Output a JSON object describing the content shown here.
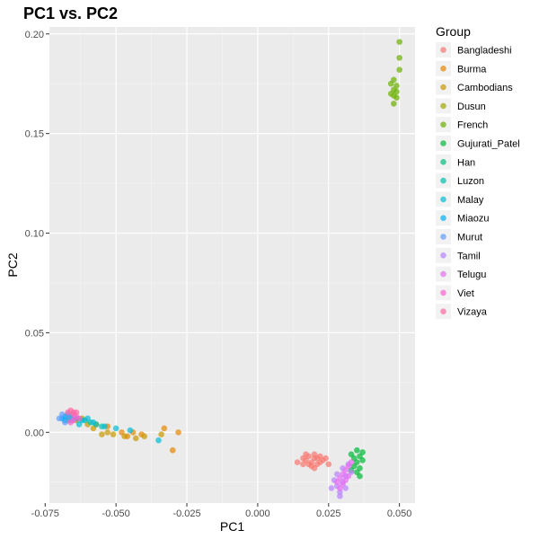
{
  "chart_data": {
    "type": "scatter",
    "title": "PC1 vs. PC2",
    "xlabel": "PC1",
    "ylabel": "PC2",
    "xlim": [
      -0.0735,
      0.0555
    ],
    "ylim": [
      -0.0355,
      0.2035
    ],
    "xticks": [
      -0.075,
      -0.05,
      -0.025,
      0.0,
      0.025,
      0.05
    ],
    "xtick_labels": [
      "-0.075",
      "-0.050",
      "-0.025",
      "0.000",
      "0.025",
      "0.050"
    ],
    "yticks": [
      0.0,
      0.05,
      0.1,
      0.15,
      0.2
    ],
    "ytick_labels": [
      "0.00",
      "0.05",
      "0.10",
      "0.15",
      "0.20"
    ],
    "grid": true,
    "legend_title": "Group",
    "legend_position": "right",
    "series": [
      {
        "name": "Bangladeshi",
        "color": "#F8766D",
        "points": [
          [
            0.016,
            -0.013
          ],
          [
            0.017,
            -0.014
          ],
          [
            0.018,
            -0.012
          ],
          [
            0.019,
            -0.015
          ],
          [
            0.02,
            -0.013
          ],
          [
            0.021,
            -0.016
          ],
          [
            0.022,
            -0.012
          ],
          [
            0.023,
            -0.014
          ],
          [
            0.018,
            -0.016
          ],
          [
            0.02,
            -0.011
          ],
          [
            0.021,
            -0.013
          ],
          [
            0.019,
            -0.017
          ],
          [
            0.017,
            -0.011
          ],
          [
            0.022,
            -0.015
          ],
          [
            0.024,
            -0.013
          ],
          [
            0.014,
            -0.015
          ],
          [
            0.02,
            -0.018
          ],
          [
            0.025,
            -0.016
          ],
          [
            0.016,
            -0.016
          ]
        ]
      },
      {
        "name": "Burma",
        "color": "#E58700",
        "points": [
          [
            -0.03,
            -0.009
          ],
          [
            -0.028,
            0.0
          ],
          [
            -0.033,
            0.002
          ],
          [
            -0.041,
            -0.001
          ],
          [
            -0.044,
            0.0
          ],
          [
            -0.046,
            -0.002
          ],
          [
            -0.048,
            0.0
          ],
          [
            -0.053,
            0.003
          ],
          [
            -0.057,
            0.004
          ]
        ]
      },
      {
        "name": "Cambodians",
        "color": "#C99800",
        "points": [
          [
            -0.034,
            -0.001
          ],
          [
            -0.04,
            -0.002
          ],
          [
            -0.043,
            -0.003
          ],
          [
            -0.047,
            -0.002
          ],
          [
            -0.051,
            -0.001
          ],
          [
            -0.053,
            0.0
          ],
          [
            -0.055,
            -0.001
          ],
          [
            -0.058,
            0.002
          ],
          [
            -0.06,
            0.004
          ]
        ]
      },
      {
        "name": "Dusun",
        "color": "#A3A500",
        "points": [
          [
            -0.062,
            0.007
          ],
          [
            -0.064,
            0.006
          ],
          [
            -0.066,
            0.008
          ],
          [
            -0.067,
            0.006
          ]
        ]
      },
      {
        "name": "French",
        "color": "#6BB100",
        "points": [
          [
            0.048,
            0.165
          ],
          [
            0.049,
            0.168
          ],
          [
            0.047,
            0.17
          ],
          [
            0.048,
            0.172
          ],
          [
            0.049,
            0.174
          ],
          [
            0.047,
            0.175
          ],
          [
            0.048,
            0.177
          ],
          [
            0.05,
            0.182
          ],
          [
            0.05,
            0.188
          ],
          [
            0.05,
            0.196
          ],
          [
            0.048,
            0.169
          ],
          [
            0.049,
            0.171
          ]
        ]
      },
      {
        "name": "Gujurati_Patel",
        "color": "#00BA38",
        "points": [
          [
            0.033,
            -0.011
          ],
          [
            0.034,
            -0.013
          ],
          [
            0.035,
            -0.015
          ],
          [
            0.036,
            -0.012
          ],
          [
            0.037,
            -0.01
          ],
          [
            0.034,
            -0.017
          ],
          [
            0.035,
            -0.02
          ],
          [
            0.036,
            -0.022
          ],
          [
            0.033,
            -0.019
          ],
          [
            0.037,
            -0.014
          ],
          [
            0.035,
            -0.009
          ],
          [
            0.036,
            -0.018
          ]
        ]
      },
      {
        "name": "Han",
        "color": "#00BF7D",
        "points": [
          [
            -0.066,
            0.007
          ],
          [
            -0.067,
            0.008
          ],
          [
            -0.064,
            0.007
          ]
        ]
      },
      {
        "name": "Luzon",
        "color": "#00C0AF",
        "points": [
          [
            -0.061,
            0.006
          ],
          [
            -0.059,
            0.005
          ],
          [
            -0.057,
            0.004
          ],
          [
            -0.055,
            0.003
          ]
        ]
      },
      {
        "name": "Malay",
        "color": "#00BCD8",
        "points": [
          [
            -0.035,
            -0.004
          ],
          [
            -0.045,
            0.001
          ],
          [
            -0.05,
            0.002
          ],
          [
            -0.054,
            0.003
          ],
          [
            -0.058,
            0.005
          ],
          [
            -0.062,
            0.006
          ],
          [
            -0.063,
            0.004
          ],
          [
            -0.06,
            0.007
          ]
        ]
      },
      {
        "name": "Miaozu",
        "color": "#00B0F6",
        "points": [
          [
            -0.068,
            0.008
          ],
          [
            -0.069,
            0.007
          ],
          [
            -0.067,
            0.009
          ],
          [
            -0.068,
            0.006
          ]
        ]
      },
      {
        "name": "Murut",
        "color": "#619CFF",
        "points": [
          [
            -0.07,
            0.007
          ],
          [
            -0.069,
            0.009
          ],
          [
            -0.068,
            0.005
          ],
          [
            -0.066,
            0.006
          ],
          [
            -0.067,
            0.008
          ],
          [
            -0.065,
            0.007
          ]
        ]
      },
      {
        "name": "Tamil",
        "color": "#B983FF",
        "points": [
          [
            0.027,
            -0.024
          ],
          [
            0.028,
            -0.027
          ],
          [
            0.029,
            -0.03
          ],
          [
            0.03,
            -0.025
          ],
          [
            0.031,
            -0.022
          ],
          [
            0.028,
            -0.021
          ],
          [
            0.03,
            -0.018
          ],
          [
            0.032,
            -0.016
          ],
          [
            0.026,
            -0.028
          ],
          [
            0.029,
            -0.032
          ],
          [
            0.031,
            -0.028
          ],
          [
            0.033,
            -0.02
          ]
        ]
      },
      {
        "name": "Telugu",
        "color": "#E76BF3",
        "points": [
          [
            0.029,
            -0.023
          ],
          [
            0.03,
            -0.021
          ],
          [
            0.031,
            -0.019
          ],
          [
            0.032,
            -0.017
          ],
          [
            0.03,
            -0.026
          ],
          [
            0.031,
            -0.024
          ],
          [
            0.033,
            -0.015
          ],
          [
            0.029,
            -0.028
          ],
          [
            0.032,
            -0.022
          ],
          [
            0.028,
            -0.025
          ]
        ]
      },
      {
        "name": "Viet",
        "color": "#FD61D1",
        "points": [
          [
            -0.065,
            0.006
          ],
          [
            -0.066,
            0.005
          ],
          [
            -0.064,
            0.008
          ],
          [
            -0.063,
            0.007
          ],
          [
            -0.065,
            0.009
          ]
        ]
      },
      {
        "name": "Vizaya",
        "color": "#FF67A4",
        "points": [
          [
            -0.066,
            0.011
          ],
          [
            -0.065,
            0.01
          ],
          [
            -0.064,
            0.01
          ],
          [
            -0.067,
            0.01
          ]
        ]
      }
    ]
  }
}
